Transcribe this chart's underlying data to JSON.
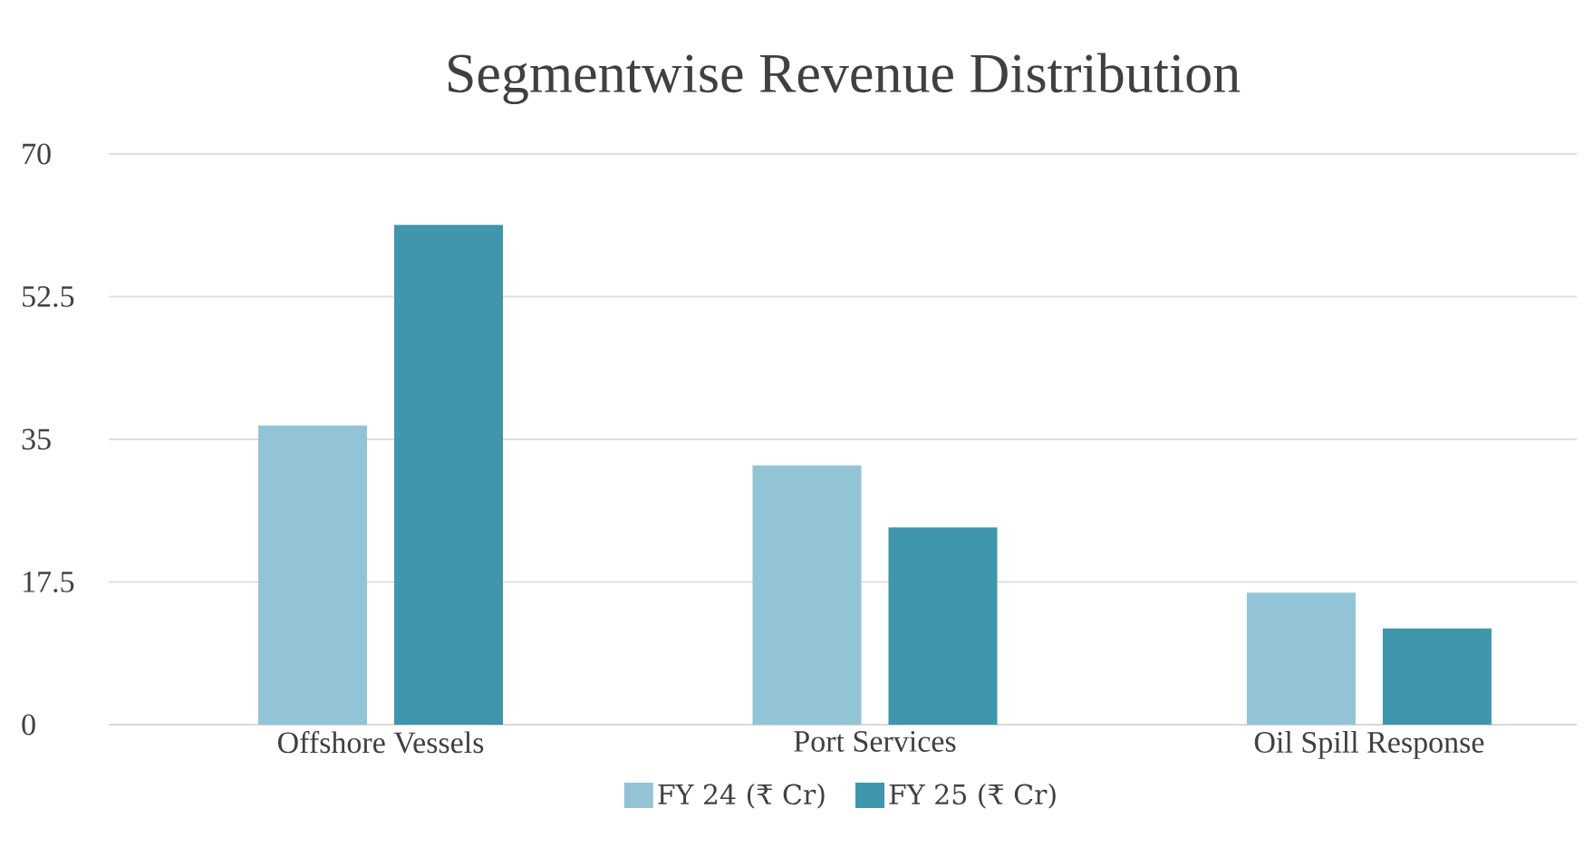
{
  "chart_data": {
    "type": "bar",
    "title": "Segmentwise Revenue Distribution",
    "categories": [
      "Offshore Vessels",
      "Port Services",
      "Oil Spill Response"
    ],
    "series": [
      {
        "name": "FY 24  (₹ Cr)",
        "color": "#93c4d6",
        "values": [
          36.7,
          31.8,
          16.2
        ]
      },
      {
        "name": "FY 25 (₹ Cr)",
        "color": "#3f96ad",
        "values": [
          61.3,
          24.2,
          11.8
        ]
      }
    ],
    "ylim": [
      0,
      70
    ],
    "yticks": [
      0,
      17.5,
      35,
      52.5,
      70
    ],
    "grid": "y",
    "legend": "bottom"
  }
}
